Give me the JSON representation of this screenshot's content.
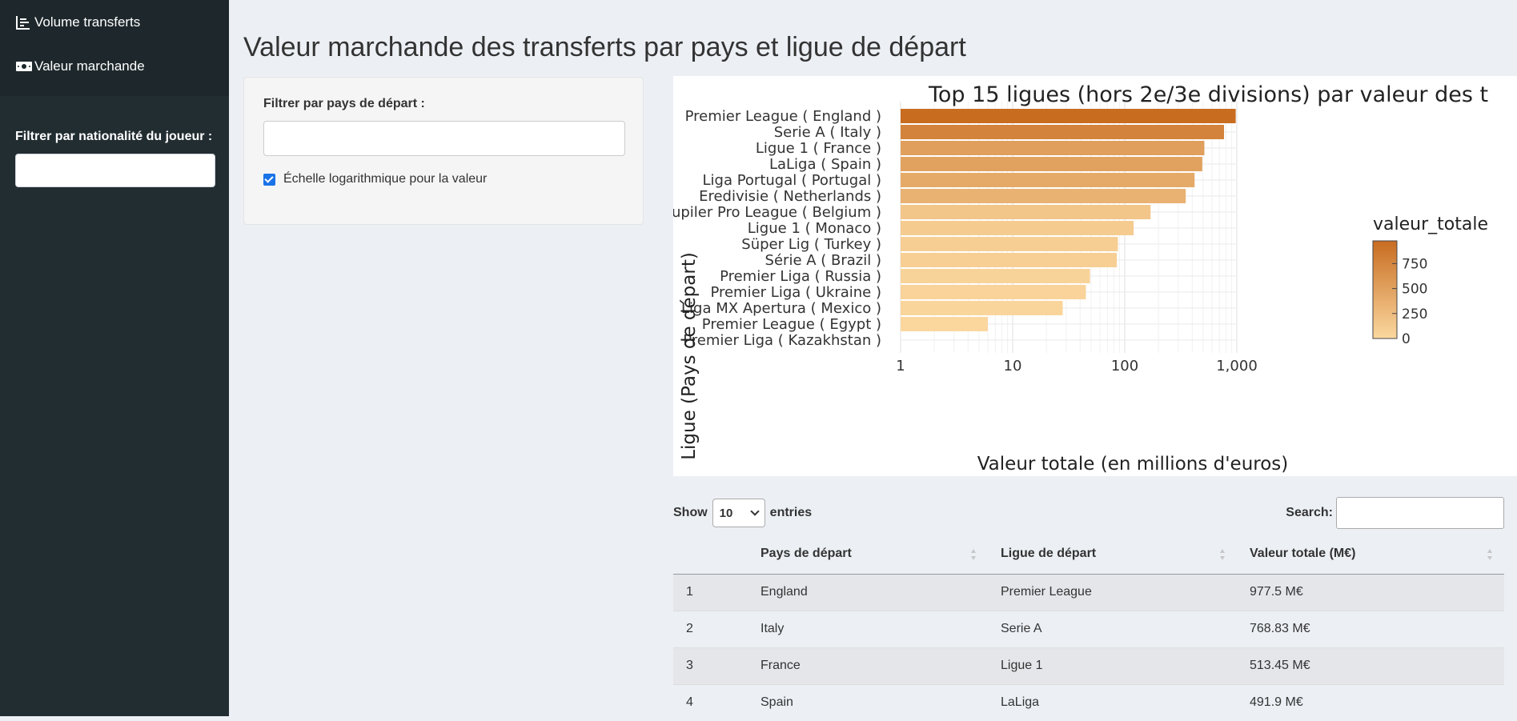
{
  "sidebar": {
    "menu": [
      {
        "label": "Volume transferts",
        "icon": "bar-chart-icon"
      },
      {
        "label": "Valeur marchande",
        "icon": "money-bill-icon"
      }
    ],
    "filter_label": "Filtrer par nationalité du joueur :",
    "filter_value": ""
  },
  "page_title": "Valeur marchande des transferts par pays et ligue de départ",
  "filters": {
    "country_label": "Filtrer par pays de départ :",
    "country_value": "",
    "log_scale_label": "Échelle logarithmique pour la valeur",
    "log_scale_checked": true
  },
  "chart_data": {
    "type": "bar",
    "orientation": "horizontal",
    "title": "Top 15 ligues (hors 2e/3e divisions) par valeur des t",
    "xlabel": "Valeur totale (en millions d'euros)",
    "ylabel": "Ligue (Pays de départ)",
    "x_scale": "log",
    "xlim": [
      1,
      1000
    ],
    "x_ticks": [
      1,
      10,
      100,
      1000
    ],
    "x_tick_labels": [
      "1",
      "10",
      "100",
      "1,000"
    ],
    "categories": [
      "Premier League ( England )",
      "Serie A ( Italy )",
      "Ligue 1 ( France )",
      "LaLiga ( Spain )",
      "Liga Portugal ( Portugal )",
      "Eredivisie ( Netherlands )",
      "Jupiler Pro League ( Belgium )",
      "Ligue 1 ( Monaco )",
      "Süper Lig ( Turkey )",
      "Série A ( Brazil )",
      "Premier Liga ( Russia )",
      "Premier Liga ( Ukraine )",
      "Liga MX Apertura ( Mexico )",
      "Premier League ( Egypt )",
      "Premier Liga ( Kazakhstan )"
    ],
    "values": [
      977.5,
      768.83,
      513.45,
      491.9,
      420,
      350,
      170,
      120,
      87,
      85,
      49,
      45,
      28,
      6,
      1
    ],
    "legend": {
      "title": "valeur_totale",
      "ticks": [
        0,
        250,
        500,
        750
      ],
      "position": "right"
    },
    "colors": {
      "low": "#fbd89f",
      "high": "#c86c20"
    },
    "grid": true
  },
  "table": {
    "show_label": "Show",
    "entries_label": "entries",
    "page_length": "10",
    "search_label": "Search:",
    "search_value": "",
    "headers": [
      "",
      "Pays de départ",
      "Ligue de départ",
      "Valeur totale (M€)"
    ],
    "rows": [
      [
        "1",
        "England",
        "Premier League",
        "977.5 M€"
      ],
      [
        "2",
        "Italy",
        "Serie A",
        "768.83 M€"
      ],
      [
        "3",
        "France",
        "Ligue 1",
        "513.45 M€"
      ],
      [
        "4",
        "Spain",
        "LaLiga",
        "491.9 M€"
      ]
    ]
  }
}
